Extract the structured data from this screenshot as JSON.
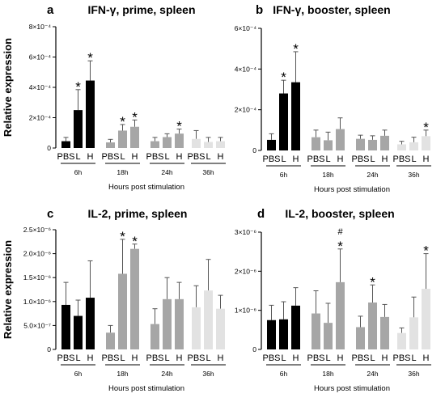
{
  "figure": {
    "y_label": "Relative expression",
    "x_label": "Hours post stimulation"
  },
  "colors": {
    "6h": "#000000",
    "18h": "#a6a6a6",
    "24h": "#a6a6a6",
    "36h": "#e2e2e2",
    "axis": "#000000"
  },
  "chart_data": [
    {
      "type": "bar",
      "panel": "a",
      "title": "IFN-γ, prime, spleen",
      "xlabel": "Hours post stimulation",
      "ylabel": "Relative expression",
      "groups": [
        "6h",
        "18h",
        "24h",
        "36h"
      ],
      "categories": [
        "PBS",
        "L",
        "H"
      ],
      "ylim": [
        0,
        0.0008
      ],
      "yticks": [
        0,
        0.0002,
        0.0004,
        0.0006,
        0.0008
      ],
      "ytick_labels": [
        "0",
        "2×10⁻⁴",
        "4×10⁻⁴",
        "6×10⁻⁴",
        "8×10⁻⁴"
      ],
      "series": [
        {
          "name": "6h",
          "values": [
            4.5e-05,
            0.00025,
            0.000445
          ],
          "errors": [
            2.5e-05,
            0.000135,
            0.00013
          ],
          "marks": [
            "",
            "*",
            "*"
          ]
        },
        {
          "name": "18h",
          "values": [
            3.7e-05,
            0.000115,
            0.00014
          ],
          "errors": [
            2e-05,
            4e-05,
            4.5e-05
          ],
          "marks": [
            "",
            "*",
            "*"
          ]
        },
        {
          "name": "24h",
          "values": [
            4.5e-05,
            7.2e-05,
            9.5e-05
          ],
          "errors": [
            2.5e-05,
            2.2e-05,
            3e-05
          ],
          "marks": [
            "",
            "",
            "*"
          ]
        },
        {
          "name": "36h",
          "values": [
            6e-05,
            4e-05,
            4.5e-05
          ],
          "errors": [
            5.5e-05,
            3e-05,
            2.5e-05
          ],
          "marks": [
            "",
            "",
            ""
          ]
        }
      ]
    },
    {
      "type": "bar",
      "panel": "b",
      "title": "IFN-γ, booster, spleen",
      "xlabel": "Hours post stimulation",
      "ylabel": "",
      "groups": [
        "6h",
        "18h",
        "24h",
        "36h"
      ],
      "categories": [
        "PBS",
        "L",
        "H"
      ],
      "ylim": [
        0,
        0.0006
      ],
      "yticks": [
        0,
        0.0002,
        0.0004,
        0.0006
      ],
      "ytick_labels": [
        "0",
        "2×10⁻⁴",
        "4×10⁻⁴",
        "6×10⁻⁴"
      ],
      "series": [
        {
          "name": "6h",
          "values": [
            5.2e-05,
            0.00028,
            0.000335
          ],
          "errors": [
            3e-05,
            6.5e-05,
            0.00015
          ],
          "marks": [
            "",
            "*",
            "*"
          ]
        },
        {
          "name": "18h",
          "values": [
            6.5e-05,
            5e-05,
            0.000105
          ],
          "errors": [
            3.5e-05,
            4e-05,
            5.5e-05
          ],
          "marks": [
            "",
            "",
            ""
          ]
        },
        {
          "name": "24h",
          "values": [
            5.7e-05,
            5.2e-05,
            7.2e-05
          ],
          "errors": [
            1.8e-05,
            2e-05,
            2.8e-05
          ],
          "marks": [
            "",
            "",
            ""
          ]
        },
        {
          "name": "36h",
          "values": [
            3e-05,
            4e-05,
            7e-05
          ],
          "errors": [
            1.5e-05,
            2.5e-05,
            3e-05
          ],
          "marks": [
            "",
            "",
            "*"
          ]
        }
      ]
    },
    {
      "type": "bar",
      "panel": "c",
      "title": "IL-2, prime, spleen",
      "xlabel": "Hours post stimulation",
      "ylabel": "Relative expression",
      "groups": [
        "6h",
        "18h",
        "24h",
        "36h"
      ],
      "categories": [
        "PBS",
        "L",
        "H"
      ],
      "ylim": [
        0,
        2.5e-06
      ],
      "yticks": [
        0,
        5e-07,
        1e-06,
        1.5e-06,
        2e-06,
        2.5e-06
      ],
      "ytick_labels": [
        "0",
        "5.0×10⁻⁷",
        "1.0×10⁻⁶",
        "1.5×10⁻⁶",
        "2.0×10⁻⁶",
        "2.5×10⁻⁶"
      ],
      "series": [
        {
          "name": "6h",
          "values": [
            9.3e-07,
            7e-07,
            1.08e-06
          ],
          "errors": [
            4.7e-07,
            3.3e-07,
            7.7e-07
          ],
          "marks": [
            "",
            "",
            ""
          ]
        },
        {
          "name": "18h",
          "values": [
            3.5e-07,
            1.58e-06,
            2.1e-06
          ],
          "errors": [
            1.5e-07,
            7.2e-07,
            1e-07
          ],
          "marks": [
            "",
            "*",
            "*"
          ]
        },
        {
          "name": "24h",
          "values": [
            5.3e-07,
            1.05e-06,
            1.05e-06
          ],
          "errors": [
            3.2e-07,
            4.5e-07,
            3.5e-07
          ],
          "marks": [
            "",
            "",
            ""
          ]
        },
        {
          "name": "36h",
          "values": [
            8.8e-07,
            1.23e-06,
            8.5e-07
          ],
          "errors": [
            4.5e-07,
            6.5e-07,
            2.8e-07
          ],
          "marks": [
            "",
            "",
            ""
          ]
        }
      ]
    },
    {
      "type": "bar",
      "panel": "d",
      "title": "IL-2, booster, spleen",
      "xlabel": "Hours post stimulation",
      "ylabel": "",
      "groups": [
        "6h",
        "18h",
        "24h",
        "36h"
      ],
      "categories": [
        "PBS",
        "L",
        "H"
      ],
      "ylim": [
        0,
        3e-06
      ],
      "yticks": [
        0,
        1e-06,
        2e-06,
        3e-06
      ],
      "ytick_labels": [
        "0",
        "1×10⁻⁶",
        "2×10⁻⁶",
        "3×10⁻⁶"
      ],
      "series": [
        {
          "name": "6h",
          "values": [
            7.5e-07,
            7.7e-07,
            1.12e-06
          ],
          "errors": [
            3.8e-07,
            4.5e-07,
            4.6e-07
          ],
          "marks": [
            "",
            "",
            ""
          ]
        },
        {
          "name": "18h",
          "values": [
            9.2e-07,
            6.8e-07,
            1.72e-06
          ],
          "errors": [
            5.8e-07,
            5e-07,
            8.5e-07
          ],
          "marks": [
            "",
            "",
            "#\n*"
          ]
        },
        {
          "name": "24h",
          "values": [
            5.7e-07,
            1.2e-06,
            8.3e-07
          ],
          "errors": [
            2.8e-07,
            4.5e-07,
            3.2e-07
          ],
          "marks": [
            "",
            "*",
            ""
          ]
        },
        {
          "name": "36h",
          "values": [
            4.2e-07,
            8.2e-07,
            1.55e-06
          ],
          "errors": [
            1.3e-07,
            5.2e-07,
            9e-07
          ],
          "marks": [
            "",
            "",
            "*"
          ]
        }
      ]
    }
  ]
}
